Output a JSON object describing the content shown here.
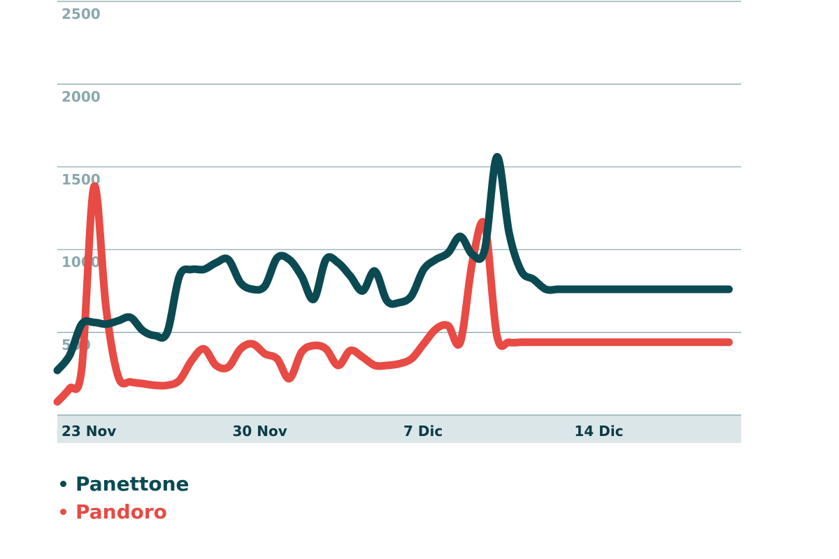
{
  "chart_data": {
    "type": "line",
    "title": "",
    "xlabel": "",
    "ylabel": "",
    "ylim": [
      0,
      2500
    ],
    "yticks": [
      500,
      1000,
      1500,
      2000,
      2500
    ],
    "ytick_labels": [
      "500",
      "1000",
      "1500",
      "2000",
      "2500"
    ],
    "xticks": [
      {
        "label": "23 Nov",
        "day": 0
      },
      {
        "label": "30 Nov",
        "day": 7
      },
      {
        "label": "7 Dic",
        "day": 14
      },
      {
        "label": "14 Dic",
        "day": 21
      }
    ],
    "x": [
      0,
      0.5,
      1,
      1.5,
      2,
      2.5,
      3,
      3.5,
      4,
      4.5,
      5,
      5.5,
      6,
      6.5,
      7,
      7.5,
      8,
      8.5,
      9,
      9.5,
      10,
      10.5,
      11,
      11.5,
      12,
      12.5,
      13,
      13.5,
      14,
      14.5,
      15,
      15.5,
      16,
      16.5,
      17,
      17.5,
      18,
      18.5,
      19,
      19.5,
      20,
      20.5,
      21,
      21.5,
      22,
      22.5,
      23,
      23.5,
      24,
      24.5,
      25,
      25.5,
      26,
      26.5,
      27,
      27.5,
      28
    ],
    "series": [
      {
        "name": "Panettone",
        "color": "#0b4a52",
        "values": [
          270,
          360,
          550,
          560,
          550,
          570,
          590,
          510,
          480,
          500,
          840,
          880,
          880,
          920,
          940,
          800,
          760,
          780,
          950,
          940,
          840,
          700,
          940,
          920,
          840,
          750,
          870,
          690,
          680,
          720,
          880,
          940,
          980,
          1080,
          970,
          1000,
          1560,
          1100,
          870,
          820,
          760,
          760,
          760,
          760,
          760,
          760,
          760,
          760,
          760,
          760,
          760,
          760,
          760,
          760,
          760,
          760,
          760
        ]
      },
      {
        "name": "Pandoro",
        "color": "#e84a44",
        "values": [
          80,
          160,
          280,
          1380,
          640,
          230,
          200,
          190,
          180,
          180,
          210,
          330,
          400,
          300,
          290,
          400,
          430,
          370,
          340,
          220,
          380,
          420,
          400,
          300,
          390,
          350,
          300,
          300,
          310,
          340,
          430,
          520,
          540,
          440,
          930,
          1150,
          480,
          440,
          440,
          440,
          440,
          440,
          440,
          440,
          440,
          440,
          440,
          440,
          440,
          440,
          440,
          440,
          440,
          440,
          440,
          440,
          440
        ]
      }
    ],
    "legend_position": "bottom-left",
    "grid": true
  },
  "legend": {
    "items": [
      {
        "label": "Panettone",
        "color": "#0b4a52"
      },
      {
        "label": "Pandoro",
        "color": "#e84a44"
      }
    ]
  }
}
